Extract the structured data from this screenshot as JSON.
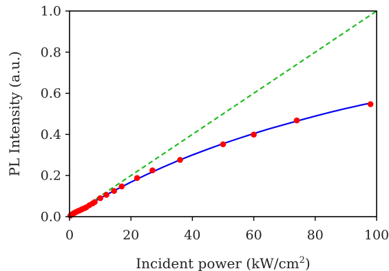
{
  "chart_data": {
    "type": "scatter",
    "title": "",
    "xlabel": "Incident power (kW/cm",
    "xlabel_sup": "2",
    "xlabel_end": ")",
    "ylabel": "PL Intensity (a.u.)",
    "xlim": [
      0,
      100
    ],
    "ylim": [
      0,
      1.0
    ],
    "xticks": [
      "0",
      "20",
      "40",
      "60",
      "80",
      "100"
    ],
    "xtick_values": [
      0,
      20,
      40,
      60,
      80,
      100
    ],
    "yticks": [
      "0.0",
      "0.2",
      "0.4",
      "0.6",
      "0.8",
      "1.0"
    ],
    "ytick_values": [
      0,
      0.2,
      0.4,
      0.6,
      0.8,
      1.0
    ],
    "grid": false,
    "legend": "none",
    "series": [
      {
        "kind": "scatter",
        "color": "#ff0000",
        "x": [
          0.3,
          0.7,
          1.0,
          1.4,
          1.8,
          2.2,
          2.7,
          3.2,
          3.8,
          4.3,
          5.0,
          5.5,
          6.5,
          7.5,
          8.2,
          10.0,
          12.0,
          14.5,
          17.0,
          22.0,
          27.0,
          36.0,
          50.0,
          60.0,
          74.0,
          98.0
        ],
        "y": [
          0.005,
          0.01,
          0.013,
          0.017,
          0.02,
          0.023,
          0.027,
          0.03,
          0.034,
          0.038,
          0.042,
          0.046,
          0.056,
          0.064,
          0.071,
          0.09,
          0.106,
          0.125,
          0.147,
          0.188,
          0.225,
          0.276,
          0.352,
          0.399,
          0.468,
          0.547
        ]
      },
      {
        "kind": "fit",
        "color": "#0000ee",
        "x": [
          0,
          5,
          10,
          15,
          20,
          25,
          30,
          35,
          40,
          45,
          50,
          55,
          60,
          65,
          70,
          75,
          80,
          85,
          90,
          95,
          98
        ],
        "y": [
          0.0,
          0.046,
          0.09,
          0.13,
          0.168,
          0.204,
          0.238,
          0.27,
          0.3,
          0.328,
          0.355,
          0.38,
          0.404,
          0.427,
          0.448,
          0.469,
          0.489,
          0.508,
          0.526,
          0.543,
          0.552
        ]
      },
      {
        "kind": "linear",
        "color": "#22bb22",
        "dashed": true,
        "x": [
          0,
          100
        ],
        "y": [
          0,
          1.0
        ]
      }
    ]
  }
}
